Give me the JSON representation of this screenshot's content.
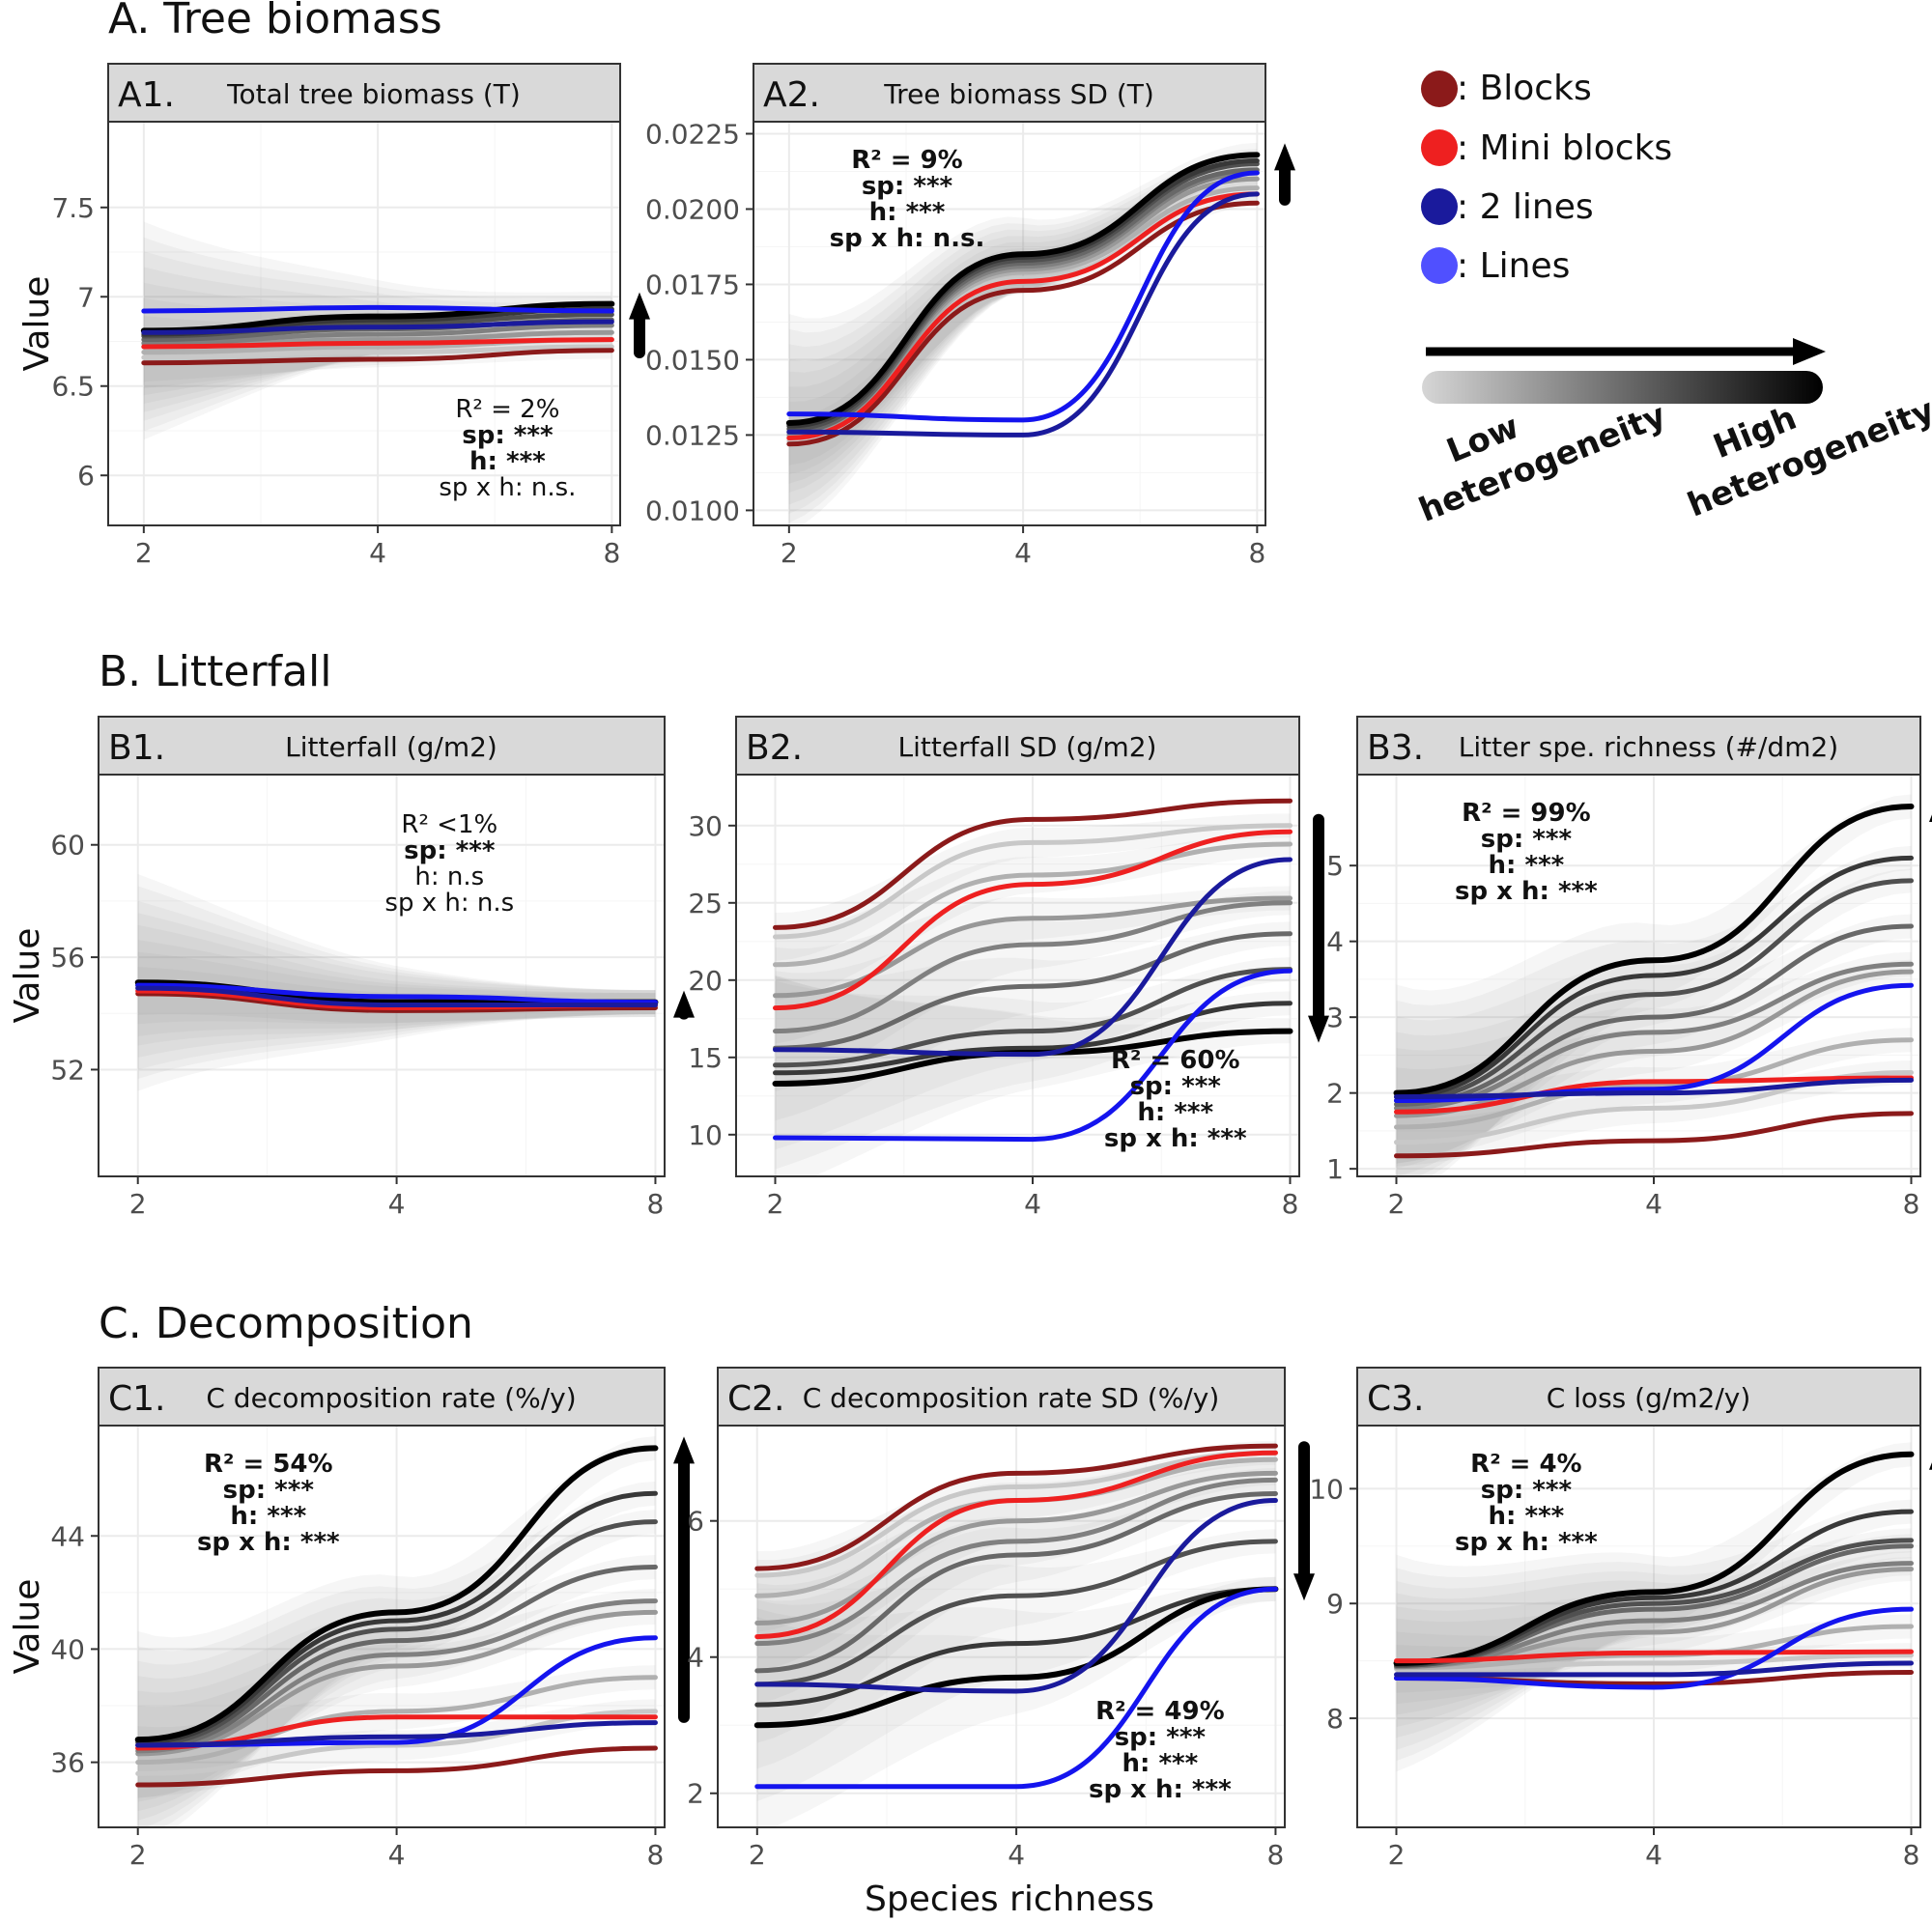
{
  "section_titles": {
    "A": "A. Tree biomass",
    "B": "B. Litterfall",
    "C": "C. Decomposition"
  },
  "x_axis_label": "Species richness",
  "y_axis_label": "Value",
  "legend": {
    "items": [
      {
        "label": ": Blocks",
        "color": "#8b1a1a"
      },
      {
        "label": ": Mini blocks",
        "color": "#ee2020"
      },
      {
        "label": ": 2 lines",
        "color": "#1a1a9c"
      },
      {
        "label": ": Lines",
        "color": "#5050ff"
      }
    ],
    "low_label_1": "Low",
    "low_label_2": "heterogeneity",
    "high_label_1": "High",
    "high_label_2": "heterogeneity"
  },
  "colors": {
    "blocks": "#8b1a1a",
    "mini_blocks": "#ee2020",
    "two_lines": "#1a1a9c",
    "lines": "#1414ee",
    "grey_ramp": [
      "#c8c8c8",
      "#b0b0b0",
      "#989898",
      "#808080",
      "#686868",
      "#505050",
      "#383838",
      "#000000"
    ]
  },
  "chart_data": [
    {
      "id": "A1",
      "type": "line",
      "label": "A1.",
      "title": "Total tree biomass (T)",
      "section": "A",
      "x": [
        2,
        4,
        8
      ],
      "xlim": [
        1.8,
        8.2
      ],
      "ylim": [
        5.72,
        7.98
      ],
      "yticks": [
        6.0,
        6.5,
        7.0,
        7.5
      ],
      "show_ylabel": true,
      "arrow": "up",
      "stats_pos": "bottom-right",
      "stats": [
        "R² = 2%",
        "sp: ***",
        "h: ***",
        "sp x h: n.s."
      ],
      "series": [
        {
          "name": "Blocks",
          "values": [
            6.63,
            6.65,
            6.7
          ]
        },
        {
          "name": "Mini blocks",
          "values": [
            6.72,
            6.74,
            6.76
          ]
        },
        {
          "name": "2 lines",
          "values": [
            6.8,
            6.83,
            6.86
          ]
        },
        {
          "name": "Lines",
          "values": [
            6.92,
            6.94,
            6.92
          ]
        },
        {
          "name": "Heterogeneity 1",
          "values": [
            6.66,
            6.69,
            6.72
          ]
        },
        {
          "name": "Heterogeneity 2",
          "values": [
            6.69,
            6.72,
            6.76
          ]
        },
        {
          "name": "Heterogeneity 3",
          "values": [
            6.72,
            6.76,
            6.8
          ]
        },
        {
          "name": "Heterogeneity 4",
          "values": [
            6.74,
            6.79,
            6.84
          ]
        },
        {
          "name": "Heterogeneity 5",
          "values": [
            6.76,
            6.82,
            6.87
          ]
        },
        {
          "name": "Heterogeneity 6",
          "values": [
            6.78,
            6.85,
            6.9
          ]
        },
        {
          "name": "Heterogeneity 7",
          "values": [
            6.79,
            6.87,
            6.93
          ]
        },
        {
          "name": "Heterogeneity 8",
          "values": [
            6.81,
            6.89,
            6.96
          ]
        }
      ]
    },
    {
      "id": "A2",
      "type": "line",
      "label": "A2.",
      "title": "Tree biomass SD (T)",
      "section": "A",
      "x": [
        2,
        4,
        8
      ],
      "xlim": [
        1.8,
        8.2
      ],
      "ylim": [
        0.0095,
        0.0229
      ],
      "yticks": [
        0.01,
        0.0125,
        0.015,
        0.0175,
        0.02,
        0.0225
      ],
      "show_ylabel": false,
      "arrow": "up",
      "stats_pos": "top-left",
      "stats": [
        "R² = 9%",
        "sp: ***",
        "h: ***",
        "sp x h: n.s."
      ],
      "series": [
        {
          "name": "Blocks",
          "values": [
            0.0122,
            0.0173,
            0.0202
          ]
        },
        {
          "name": "Mini blocks",
          "values": [
            0.0124,
            0.0176,
            0.0205
          ]
        },
        {
          "name": "2 lines",
          "values": [
            0.0126,
            0.0125,
            0.0205
          ]
        },
        {
          "name": "Lines",
          "values": [
            0.0132,
            0.013,
            0.0212
          ]
        },
        {
          "name": "Heterogeneity 1",
          "values": [
            0.0123,
            0.0177,
            0.0205
          ]
        },
        {
          "name": "Heterogeneity 2",
          "values": [
            0.0124,
            0.0179,
            0.0207
          ]
        },
        {
          "name": "Heterogeneity 3",
          "values": [
            0.0125,
            0.018,
            0.021
          ]
        },
        {
          "name": "Heterogeneity 4",
          "values": [
            0.0126,
            0.0181,
            0.0212
          ]
        },
        {
          "name": "Heterogeneity 5",
          "values": [
            0.0126,
            0.0182,
            0.0213
          ]
        },
        {
          "name": "Heterogeneity 6",
          "values": [
            0.0127,
            0.0183,
            0.0215
          ]
        },
        {
          "name": "Heterogeneity 7",
          "values": [
            0.0128,
            0.0184,
            0.0216
          ]
        },
        {
          "name": "Heterogeneity 8",
          "values": [
            0.0129,
            0.0185,
            0.0218
          ]
        }
      ]
    },
    {
      "id": "B1",
      "type": "line",
      "label": "B1.",
      "title": "Litterfall (g/m2)",
      "section": "B",
      "x": [
        2,
        4,
        8
      ],
      "xlim": [
        1.8,
        8.2
      ],
      "ylim": [
        48.2,
        62.5
      ],
      "yticks": [
        52,
        56,
        60
      ],
      "show_ylabel": true,
      "arrow": "up",
      "stats_pos": "top-right",
      "stats": [
        "R² <1%",
        "sp: ***",
        "h: n.s",
        "sp x h: n.s"
      ],
      "series": [
        {
          "name": "Blocks",
          "values": [
            54.7,
            54.1,
            54.2
          ]
        },
        {
          "name": "Mini blocks",
          "values": [
            54.8,
            54.2,
            54.3
          ]
        },
        {
          "name": "2 lines",
          "values": [
            54.9,
            54.3,
            54.3
          ]
        },
        {
          "name": "Lines",
          "values": [
            55.0,
            54.6,
            54.4
          ]
        },
        {
          "name": "Heterogeneity 1",
          "values": [
            54.8,
            54.2,
            54.3
          ]
        },
        {
          "name": "Heterogeneity 2",
          "values": [
            54.9,
            54.3,
            54.3
          ]
        },
        {
          "name": "Heterogeneity 3",
          "values": [
            54.9,
            54.3,
            54.3
          ]
        },
        {
          "name": "Heterogeneity 4",
          "values": [
            55.0,
            54.3,
            54.4
          ]
        },
        {
          "name": "Heterogeneity 5",
          "values": [
            55.0,
            54.4,
            54.4
          ]
        },
        {
          "name": "Heterogeneity 6",
          "values": [
            55.0,
            54.4,
            54.4
          ]
        },
        {
          "name": "Heterogeneity 7",
          "values": [
            55.1,
            54.4,
            54.4
          ]
        },
        {
          "name": "Heterogeneity 8",
          "values": [
            55.1,
            54.4,
            54.4
          ]
        }
      ]
    },
    {
      "id": "B2",
      "type": "line",
      "label": "B2.",
      "title": "Litterfall SD (g/m2)",
      "section": "B",
      "x": [
        2,
        4,
        8
      ],
      "xlim": [
        1.8,
        8.2
      ],
      "ylim": [
        7.3,
        33.3
      ],
      "yticks": [
        10,
        15,
        20,
        25,
        30
      ],
      "show_ylabel": false,
      "arrow": "down",
      "stats_pos": "bottom-right",
      "stats": [
        "R² = 60%",
        "sp: ***",
        "h: ***",
        "sp x h: ***"
      ],
      "series": [
        {
          "name": "Blocks",
          "values": [
            23.4,
            30.4,
            31.6
          ]
        },
        {
          "name": "Mini blocks",
          "values": [
            18.2,
            26.2,
            29.6
          ]
        },
        {
          "name": "2 lines",
          "values": [
            15.5,
            15.2,
            27.8
          ]
        },
        {
          "name": "Lines",
          "values": [
            9.8,
            9.7,
            20.6
          ]
        },
        {
          "name": "Heterogeneity 1",
          "values": [
            22.8,
            28.9,
            30.0
          ]
        },
        {
          "name": "Heterogeneity 2",
          "values": [
            21.0,
            26.8,
            28.8
          ]
        },
        {
          "name": "Heterogeneity 3",
          "values": [
            19.0,
            24.0,
            25.3
          ]
        },
        {
          "name": "Heterogeneity 4",
          "values": [
            16.7,
            22.3,
            25.0
          ]
        },
        {
          "name": "Heterogeneity 5",
          "values": [
            15.6,
            19.6,
            23.0
          ]
        },
        {
          "name": "Heterogeneity 6",
          "values": [
            14.5,
            16.7,
            20.7
          ]
        },
        {
          "name": "Heterogeneity 7",
          "values": [
            14.0,
            15.6,
            18.5
          ]
        },
        {
          "name": "Heterogeneity 8",
          "values": [
            13.3,
            15.3,
            16.7
          ]
        }
      ]
    },
    {
      "id": "B3",
      "type": "line",
      "label": "B3.",
      "title": "Litter spe. richness (#/dm2)",
      "section": "B",
      "x": [
        2,
        4,
        8
      ],
      "xlim": [
        1.8,
        8.2
      ],
      "ylim": [
        0.9,
        6.2
      ],
      "yticks": [
        1,
        2,
        3,
        4,
        5
      ],
      "show_ylabel": false,
      "arrow": "up",
      "stats_pos": "top-left",
      "stats": [
        "R² = 99%",
        "sp: ***",
        "h: ***",
        "sp x h: ***"
      ],
      "series": [
        {
          "name": "Blocks",
          "values": [
            1.17,
            1.37,
            1.73
          ]
        },
        {
          "name": "Mini blocks",
          "values": [
            1.75,
            2.15,
            2.2
          ]
        },
        {
          "name": "2 lines",
          "values": [
            1.95,
            2.0,
            2.17
          ]
        },
        {
          "name": "Lines",
          "values": [
            1.9,
            2.05,
            3.42
          ]
        },
        {
          "name": "Heterogeneity 1",
          "values": [
            1.35,
            1.8,
            2.27
          ]
        },
        {
          "name": "Heterogeneity 2",
          "values": [
            1.55,
            2.1,
            2.7
          ]
        },
        {
          "name": "Heterogeneity 3",
          "values": [
            1.7,
            2.55,
            3.6
          ]
        },
        {
          "name": "Heterogeneity 4",
          "values": [
            1.8,
            2.8,
            3.7
          ]
        },
        {
          "name": "Heterogeneity 5",
          "values": [
            1.85,
            3.0,
            4.2
          ]
        },
        {
          "name": "Heterogeneity 6",
          "values": [
            1.9,
            3.3,
            4.8
          ]
        },
        {
          "name": "Heterogeneity 7",
          "values": [
            1.95,
            3.55,
            5.1
          ]
        },
        {
          "name": "Heterogeneity 8",
          "values": [
            2.0,
            3.75,
            5.78
          ]
        }
      ]
    },
    {
      "id": "C1",
      "type": "line",
      "label": "C1.",
      "title": "C decomposition rate (%/y)",
      "section": "C",
      "x": [
        2,
        4,
        8
      ],
      "xlim": [
        1.8,
        8.2
      ],
      "ylim": [
        33.7,
        47.9
      ],
      "yticks": [
        36,
        40,
        44
      ],
      "show_ylabel": true,
      "arrow": "up",
      "stats_pos": "top-left",
      "stats": [
        "R² = 54%",
        "sp: ***",
        "h: ***",
        "sp x h: ***"
      ],
      "series": [
        {
          "name": "Blocks",
          "values": [
            35.2,
            35.7,
            36.5
          ]
        },
        {
          "name": "Mini blocks",
          "values": [
            36.5,
            37.6,
            37.6
          ]
        },
        {
          "name": "2 lines",
          "values": [
            36.6,
            36.9,
            37.4
          ]
        },
        {
          "name": "Lines",
          "values": [
            36.6,
            36.7,
            40.4
          ]
        },
        {
          "name": "Heterogeneity 1",
          "values": [
            35.6,
            36.6,
            37.8
          ]
        },
        {
          "name": "Heterogeneity 2",
          "values": [
            36.0,
            37.8,
            39.0
          ]
        },
        {
          "name": "Heterogeneity 3",
          "values": [
            36.3,
            39.4,
            41.3
          ]
        },
        {
          "name": "Heterogeneity 4",
          "values": [
            36.4,
            39.8,
            41.7
          ]
        },
        {
          "name": "Heterogeneity 5",
          "values": [
            36.5,
            40.3,
            42.9
          ]
        },
        {
          "name": "Heterogeneity 6",
          "values": [
            36.6,
            40.7,
            44.5
          ]
        },
        {
          "name": "Heterogeneity 7",
          "values": [
            36.7,
            41.0,
            45.5
          ]
        },
        {
          "name": "Heterogeneity 8",
          "values": [
            36.8,
            41.3,
            47.1
          ]
        }
      ]
    },
    {
      "id": "C2",
      "type": "line",
      "label": "C2.",
      "title": "C decomposition rate SD (%/y)",
      "section": "C",
      "x": [
        2,
        4,
        8
      ],
      "xlim": [
        1.8,
        8.2
      ],
      "ylim": [
        1.5,
        7.4
      ],
      "yticks": [
        2,
        4,
        6
      ],
      "show_ylabel": false,
      "arrow": "down",
      "stats_pos": "bottom-right",
      "stats": [
        "R² = 49%",
        "sp: ***",
        "h: ***",
        "sp x h: ***"
      ],
      "series": [
        {
          "name": "Blocks",
          "values": [
            5.3,
            6.7,
            7.1
          ]
        },
        {
          "name": "Mini blocks",
          "values": [
            4.3,
            6.3,
            7.0
          ]
        },
        {
          "name": "2 lines",
          "values": [
            3.6,
            3.5,
            6.3
          ]
        },
        {
          "name": "Lines",
          "values": [
            2.1,
            2.1,
            5.0
          ]
        },
        {
          "name": "Heterogeneity 1",
          "values": [
            5.2,
            6.5,
            7.0
          ]
        },
        {
          "name": "Heterogeneity 2",
          "values": [
            4.9,
            6.3,
            6.9
          ]
        },
        {
          "name": "Heterogeneity 3",
          "values": [
            4.5,
            6.0,
            6.7
          ]
        },
        {
          "name": "Heterogeneity 4",
          "values": [
            4.2,
            5.7,
            6.6
          ]
        },
        {
          "name": "Heterogeneity 5",
          "values": [
            3.8,
            5.5,
            6.4
          ]
        },
        {
          "name": "Heterogeneity 6",
          "values": [
            3.6,
            4.9,
            5.7
          ]
        },
        {
          "name": "Heterogeneity 7",
          "values": [
            3.3,
            4.2,
            5.0
          ]
        },
        {
          "name": "Heterogeneity 8",
          "values": [
            3.0,
            3.7,
            5.0
          ]
        }
      ]
    },
    {
      "id": "C3",
      "type": "line",
      "label": "C3.",
      "title": "C loss (g/m2/y)",
      "section": "C",
      "x": [
        2,
        4,
        8
      ],
      "xlim": [
        1.8,
        8.2
      ],
      "ylim": [
        7.05,
        10.55
      ],
      "yticks": [
        8,
        9,
        10
      ],
      "show_ylabel": false,
      "arrow": "up",
      "stats_pos": "top-left",
      "stats": [
        "R² = 4%",
        "sp: ***",
        "h: ***",
        "sp x h: ***"
      ],
      "series": [
        {
          "name": "Blocks",
          "values": [
            8.35,
            8.3,
            8.4
          ]
        },
        {
          "name": "Mini blocks",
          "values": [
            8.5,
            8.57,
            8.58
          ]
        },
        {
          "name": "2 lines",
          "values": [
            8.38,
            8.38,
            8.48
          ]
        },
        {
          "name": "Lines",
          "values": [
            8.35,
            8.27,
            8.95
          ]
        },
        {
          "name": "Heterogeneity 1",
          "values": [
            8.43,
            8.48,
            8.55
          ]
        },
        {
          "name": "Heterogeneity 2",
          "values": [
            8.44,
            8.55,
            8.8
          ]
        },
        {
          "name": "Heterogeneity 3",
          "values": [
            8.45,
            8.75,
            9.3
          ]
        },
        {
          "name": "Heterogeneity 4",
          "values": [
            8.45,
            8.85,
            9.35
          ]
        },
        {
          "name": "Heterogeneity 5",
          "values": [
            8.46,
            8.95,
            9.5
          ]
        },
        {
          "name": "Heterogeneity 6",
          "values": [
            8.46,
            9.0,
            9.55
          ]
        },
        {
          "name": "Heterogeneity 7",
          "values": [
            8.47,
            9.05,
            9.8
          ]
        },
        {
          "name": "Heterogeneity 8",
          "values": [
            8.48,
            9.1,
            10.3
          ]
        }
      ]
    }
  ]
}
